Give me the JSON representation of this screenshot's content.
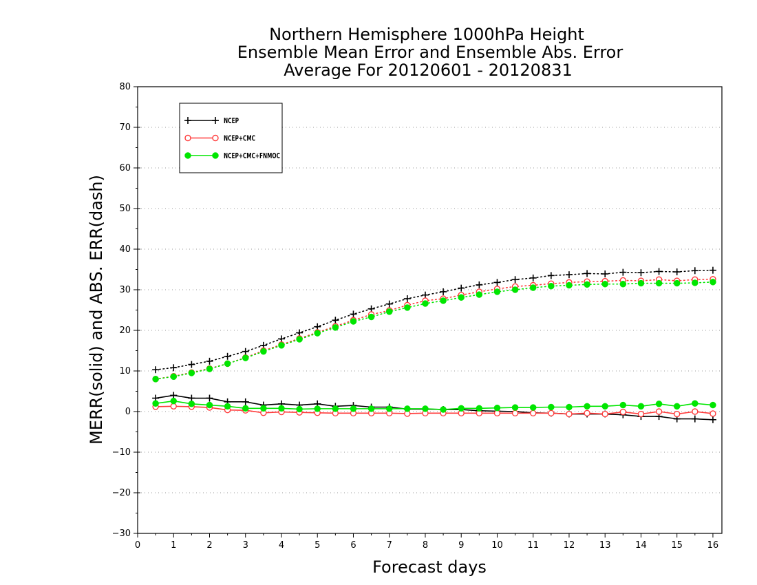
{
  "chart_data": {
    "type": "line",
    "title": [
      "Northern Hemisphere 1000hPa Height",
      "Ensemble Mean Error and Ensemble Abs. Error",
      "Average For 20120601 - 20120831"
    ],
    "xlabel": "Forecast days",
    "ylabel": "MERR(solid) and ABS. ERR(dash)",
    "xlim": [
      0,
      16.25
    ],
    "ylim": [
      -30,
      80
    ],
    "xticks": [
      0,
      1,
      2,
      3,
      4,
      5,
      6,
      7,
      8,
      9,
      10,
      11,
      12,
      13,
      14,
      15,
      16
    ],
    "yticks": [
      -30,
      -20,
      -10,
      0,
      10,
      20,
      30,
      40,
      50,
      60,
      70,
      80
    ],
    "grid": "horizontal dotted",
    "legend_position": "top-left",
    "x": [
      0.5,
      1,
      1.5,
      2,
      2.5,
      3,
      3.5,
      4,
      4.5,
      5,
      5.5,
      6,
      6.5,
      7,
      7.5,
      8,
      8.5,
      9,
      9.5,
      10,
      10.5,
      11,
      11.5,
      12,
      12.5,
      13,
      13.5,
      14,
      14.5,
      15,
      15.5,
      16
    ],
    "series": [
      {
        "name": "NCEP",
        "color": "#000000",
        "marker": "plus",
        "merr": [
          3.3,
          4.0,
          3.3,
          3.3,
          2.4,
          2.4,
          1.6,
          1.9,
          1.6,
          1.9,
          1.3,
          1.5,
          1.1,
          1.1,
          0.6,
          0.6,
          0.5,
          0.5,
          0.2,
          0.1,
          0.0,
          -0.3,
          -0.4,
          -0.6,
          -0.6,
          -0.6,
          -0.8,
          -1.2,
          -1.2,
          -1.8,
          -1.8,
          -2.0
        ],
        "abs_err": [
          10.3,
          10.8,
          11.6,
          12.4,
          13.6,
          14.8,
          16.3,
          17.9,
          19.4,
          20.9,
          22.5,
          24.0,
          25.3,
          26.5,
          27.8,
          28.7,
          29.5,
          30.4,
          31.2,
          31.8,
          32.5,
          32.9,
          33.5,
          33.7,
          34.0,
          33.9,
          34.3,
          34.2,
          34.5,
          34.4,
          34.7,
          34.8
        ]
      },
      {
        "name": "NCEP+CMC",
        "color": "#ff3b3b",
        "marker": "open-circle",
        "merr": [
          1.2,
          1.3,
          1.2,
          1.0,
          0.4,
          0.3,
          -0.3,
          -0.1,
          -0.2,
          -0.3,
          -0.4,
          -0.4,
          -0.4,
          -0.4,
          -0.5,
          -0.4,
          -0.4,
          -0.4,
          -0.4,
          -0.4,
          -0.4,
          -0.4,
          -0.4,
          -0.6,
          -0.4,
          -0.6,
          -0.1,
          -0.6,
          0.0,
          -0.6,
          0.0,
          -0.5
        ],
        "abs_err": [
          8.0,
          8.7,
          9.6,
          10.6,
          11.8,
          13.3,
          15.0,
          16.5,
          18.0,
          19.5,
          21.0,
          22.5,
          23.9,
          24.9,
          26.2,
          27.3,
          27.8,
          28.7,
          29.5,
          30.2,
          30.8,
          31.1,
          31.5,
          31.8,
          32.0,
          32.1,
          32.3,
          32.2,
          32.5,
          32.2,
          32.5,
          32.6
        ]
      },
      {
        "name": "NCEP+CMC+FNMOC",
        "color": "#00e600",
        "marker": "filled-circle",
        "merr": [
          2.0,
          2.6,
          1.9,
          1.6,
          1.3,
          0.8,
          0.8,
          0.8,
          0.6,
          0.7,
          0.7,
          0.7,
          0.7,
          0.7,
          0.7,
          0.7,
          0.5,
          0.8,
          0.8,
          0.9,
          1.0,
          1.0,
          1.1,
          1.1,
          1.3,
          1.3,
          1.6,
          1.3,
          1.9,
          1.3,
          2.0,
          1.6
        ],
        "abs_err": [
          8.0,
          8.6,
          9.5,
          10.5,
          11.8,
          13.2,
          14.8,
          16.3,
          17.8,
          19.3,
          20.7,
          22.2,
          23.3,
          24.6,
          25.6,
          26.6,
          27.3,
          28.1,
          28.8,
          29.5,
          30.0,
          30.5,
          30.9,
          31.1,
          31.3,
          31.4,
          31.4,
          31.6,
          31.6,
          31.6,
          31.7,
          31.9
        ]
      }
    ]
  }
}
